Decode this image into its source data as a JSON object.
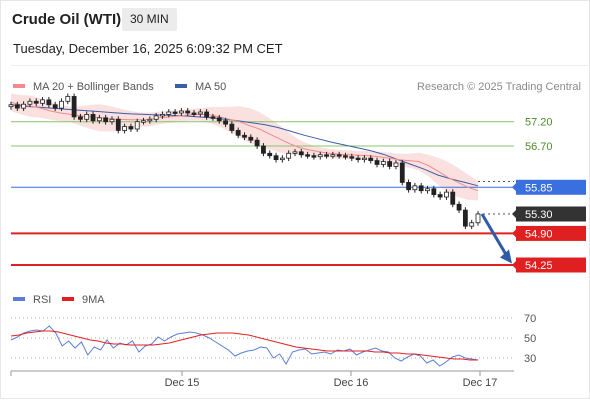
{
  "header": {
    "title": "Crude Oil (WTI)",
    "interval": "30 MIN",
    "datetime": "Tuesday, December 16, 2025 6:09:32 PM CET"
  },
  "legend": {
    "items": [
      {
        "label": "MA 20 + Bollinger Bands",
        "color": "#f28a8a"
      },
      {
        "label": "MA 50",
        "color": "#3b5ea8"
      }
    ],
    "credit": "Research © 2025 Trading Central"
  },
  "rsi_legend": {
    "items": [
      {
        "label": "RSI",
        "color": "#5b7fd6"
      },
      {
        "label": "9MA",
        "color": "#e02020"
      }
    ]
  },
  "colors": {
    "green_level": "#8ac46a",
    "blue_level": "#3a6fe0",
    "red_level": "#e02020",
    "current_price": "#333333",
    "arrow": "#2f5aa8",
    "bollinger_band": "#fbe0e0",
    "candle": "#222222"
  },
  "chart_data": [
    {
      "type": "candlestick",
      "title": "Crude Oil (WTI)",
      "ylim": [
        53.9,
        57.75
      ],
      "x_ticks": [
        "Dec 15",
        "Dec 16",
        "Dec 17"
      ],
      "levels": [
        {
          "label": "57.20",
          "value": 57.2,
          "kind": "resistance"
        },
        {
          "label": "56.70",
          "value": 56.7,
          "kind": "resistance"
        },
        {
          "label": "55.85",
          "value": 55.85,
          "kind": "pivot"
        },
        {
          "label": "55.30",
          "value": 55.3,
          "kind": "current"
        },
        {
          "label": "54.90",
          "value": 54.9,
          "kind": "support"
        },
        {
          "label": "54.25",
          "value": 54.25,
          "kind": "support"
        }
      ],
      "close_series": [
        57.55,
        57.48,
        57.56,
        57.62,
        57.58,
        57.65,
        57.55,
        57.48,
        57.62,
        57.72,
        57.3,
        57.25,
        57.35,
        57.22,
        57.28,
        57.2,
        57.25,
        57.02,
        57.1,
        57.05,
        57.2,
        57.22,
        57.25,
        57.32,
        57.35,
        57.4,
        57.38,
        57.42,
        57.38,
        57.36,
        57.4,
        57.3,
        57.28,
        57.22,
        57.15,
        57.02,
        56.92,
        56.88,
        56.82,
        56.7,
        56.55,
        56.5,
        56.42,
        56.45,
        56.55,
        56.58,
        56.52,
        56.5,
        56.48,
        56.52,
        56.5,
        56.52,
        56.5,
        56.48,
        56.45,
        56.42,
        56.45,
        56.4,
        56.32,
        56.38,
        56.28,
        56.35,
        55.95,
        55.8,
        55.88,
        55.78,
        55.82,
        55.7,
        55.65,
        55.75,
        55.5,
        55.38,
        55.05,
        55.12,
        55.3
      ],
      "ma20": [
        57.6,
        57.55,
        57.52,
        57.48,
        57.42,
        57.38,
        57.35,
        57.32,
        57.3,
        57.28,
        57.26,
        57.25,
        57.24,
        57.24,
        57.25,
        57.28,
        57.3,
        57.32,
        57.34,
        57.35,
        57.34,
        57.3,
        57.25,
        57.2,
        57.12,
        57.05,
        56.95,
        56.85,
        56.75,
        56.67,
        56.62,
        56.58,
        56.55,
        56.53,
        56.52,
        56.51,
        56.5,
        56.48,
        56.45,
        56.42,
        56.4,
        56.38,
        56.3,
        56.18,
        56.05,
        55.95,
        55.85,
        55.78
      ],
      "ma50": [
        57.55,
        57.52,
        57.5,
        57.48,
        57.46,
        57.44,
        57.42,
        57.4,
        57.38,
        57.36,
        57.35,
        57.34,
        57.33,
        57.32,
        57.3,
        57.28,
        57.25,
        57.22,
        57.18,
        57.14,
        57.08,
        57.0,
        56.92,
        56.85,
        56.78,
        56.72,
        56.66,
        56.6,
        56.52,
        56.42,
        56.32,
        56.22,
        56.1,
        56.02,
        55.95,
        55.88
      ]
    },
    {
      "type": "line",
      "title": "RSI",
      "ylim": [
        20,
        80
      ],
      "y_ticks": [
        70,
        50,
        30
      ],
      "series": [
        {
          "name": "RSI",
          "values": [
            48,
            51,
            55,
            57,
            58,
            57,
            62,
            55,
            42,
            47,
            40,
            46,
            33,
            41,
            38,
            48,
            40,
            45,
            43,
            47,
            36,
            42,
            44,
            51,
            47,
            51,
            54,
            55,
            56,
            55,
            53,
            50,
            46,
            42,
            38,
            32,
            35,
            37,
            38,
            41,
            40,
            30,
            34,
            24,
            36,
            38,
            39,
            34,
            35,
            36,
            34,
            38,
            37,
            39,
            33,
            36,
            38,
            40,
            37,
            36,
            30,
            27,
            31,
            34,
            32,
            25,
            28,
            22,
            26,
            31,
            33,
            30,
            29,
            28
          ]
        },
        {
          "name": "9MA",
          "values": [
            52,
            53,
            55,
            56,
            57,
            57,
            56,
            54,
            52,
            50,
            48,
            47,
            45,
            44,
            44,
            43,
            43,
            43,
            43,
            44,
            45,
            47,
            49,
            51,
            53,
            54,
            55,
            55,
            55,
            54,
            53,
            51,
            49,
            47,
            45,
            43,
            41,
            40,
            39,
            38,
            37,
            37,
            37,
            37,
            37,
            37,
            36,
            36,
            35,
            35,
            34,
            34,
            33,
            32,
            31,
            30,
            29,
            29,
            28,
            28
          ]
        }
      ]
    }
  ]
}
